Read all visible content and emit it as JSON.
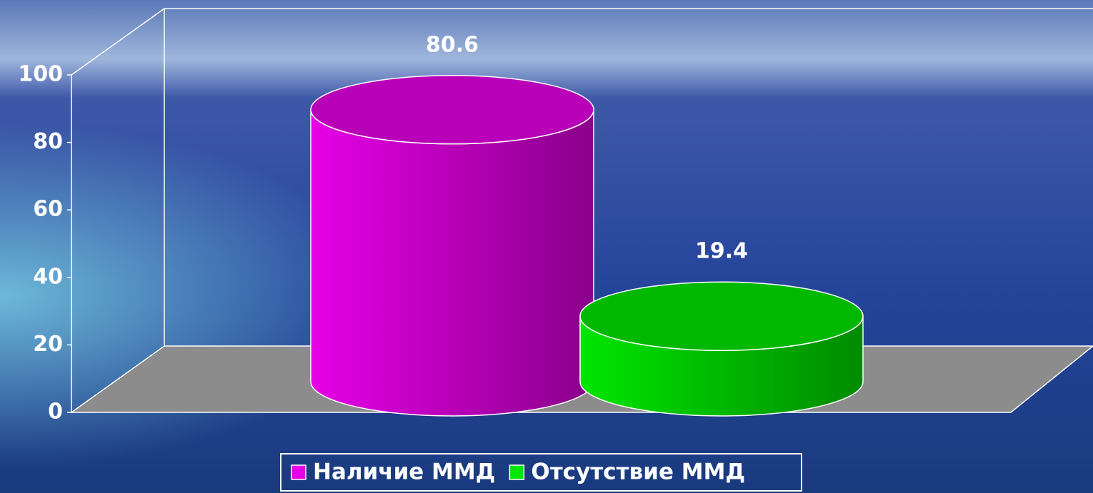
{
  "chart_data": {
    "type": "bar",
    "categories": [
      null
    ],
    "series": [
      {
        "name": "Наличие ММД",
        "color": "#e600e6",
        "values": [
          80.6
        ]
      },
      {
        "name": "Отсутствие ММД",
        "color": "#00e600",
        "values": [
          19.4
        ]
      }
    ],
    "ylim": [
      0,
      100
    ],
    "yticks": [
      0,
      20,
      40,
      60,
      80,
      100
    ],
    "grid": false,
    "legend": "bottom"
  }
}
